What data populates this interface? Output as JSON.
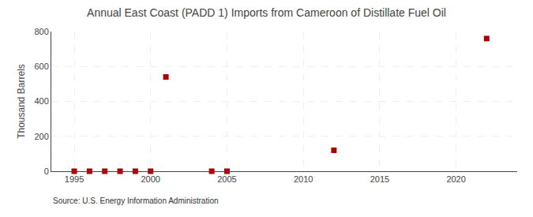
{
  "chart_data": {
    "type": "scatter",
    "title": "Annual East Coast (PADD 1) Imports from Cameroon of Distillate Fuel Oil",
    "ylabel": "Thousand Barrels",
    "source": "Source: U.S. Energy Information Administration",
    "x": [
      1995,
      1996,
      1997,
      1998,
      1999,
      2000,
      2001,
      2004,
      2005,
      2012,
      2022
    ],
    "values": [
      0,
      0,
      0,
      0,
      0,
      0,
      540,
      0,
      0,
      120,
      760
    ],
    "color": "#aa0000",
    "marker": "square",
    "xlim": [
      1993.5,
      2024
    ],
    "ylim": [
      0,
      800
    ],
    "xticks": [
      1995,
      2000,
      2005,
      2010,
      2015,
      2020
    ],
    "yticks": [
      0,
      200,
      400,
      600,
      800
    ],
    "grid": true
  }
}
